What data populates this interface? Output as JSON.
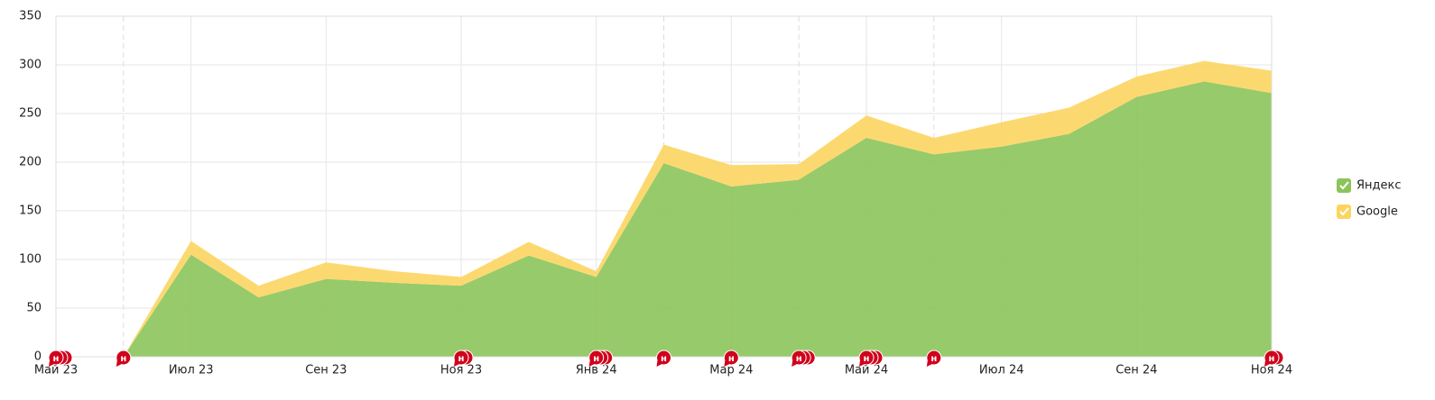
{
  "chart_data": {
    "type": "stacked_area",
    "categories": [
      "Май 23",
      null,
      "Июл 23",
      null,
      "Сен 23",
      null,
      "Ноя 23",
      null,
      "Янв 24",
      null,
      "Мар 24",
      null,
      "Май 24",
      null,
      "Июл 24",
      null,
      "Сен 24",
      null,
      "Ноя 24"
    ],
    "series": [
      {
        "name": "Яндекс",
        "color": "#8cc45a",
        "values": [
          0,
          0,
          105,
          61,
          80,
          76,
          73,
          104,
          82,
          199,
          175,
          182,
          225,
          208,
          216,
          229,
          267,
          283,
          271
        ]
      },
      {
        "name": "Google",
        "color": "#fcd560",
        "values": [
          0,
          0,
          14,
          12,
          17,
          12,
          9,
          14,
          6,
          19,
          22,
          16,
          23,
          17,
          25,
          27,
          21,
          21,
          23
        ]
      }
    ],
    "ylim": [
      0,
      350
    ],
    "yticks": [
      0,
      50,
      100,
      150,
      200,
      250,
      300,
      350
    ],
    "grid": true,
    "legend": "right",
    "annotations": [
      {
        "index": 0,
        "label": "н",
        "count": 3
      },
      {
        "index": 1,
        "label": "н",
        "count": 1
      },
      {
        "index": 6,
        "label": "н",
        "count": 2
      },
      {
        "index": 8,
        "label": "н",
        "count": 3
      },
      {
        "index": 9,
        "label": "н",
        "count": 1
      },
      {
        "index": 10,
        "label": "н",
        "count": 1
      },
      {
        "index": 11,
        "label": "н",
        "count": 3
      },
      {
        "index": 12,
        "label": "н",
        "count": 3
      },
      {
        "index": 13,
        "label": "н",
        "count": 1
      },
      {
        "index": 18,
        "label": "н",
        "count": 2
      }
    ]
  }
}
